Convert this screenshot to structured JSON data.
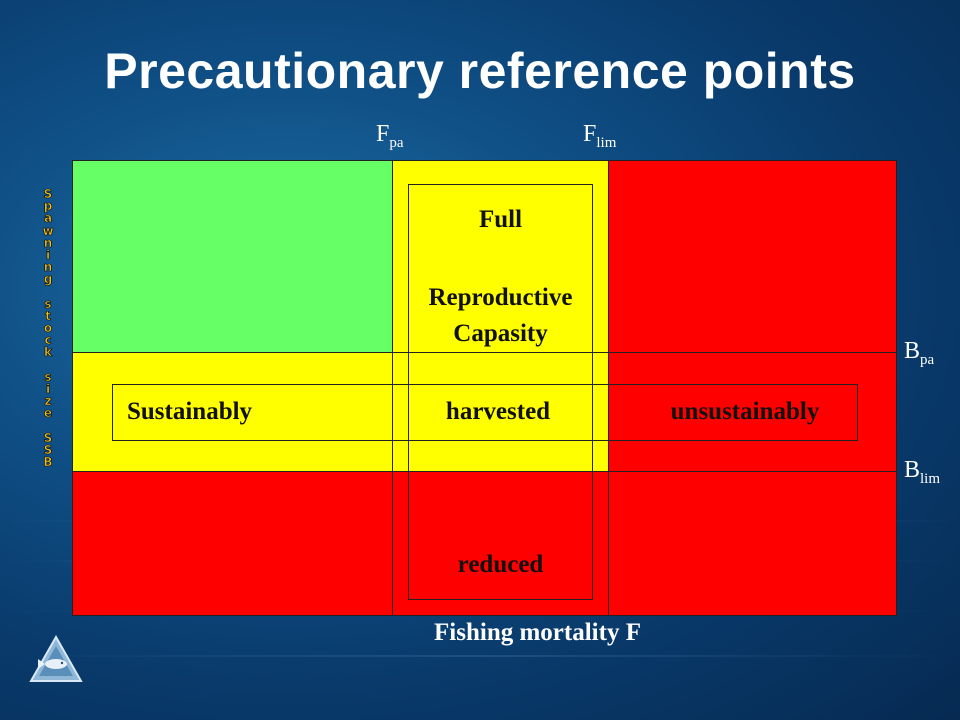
{
  "title": "Precautionary reference points",
  "reference_points": {
    "f_pa_main": "F",
    "f_pa_sub": "pa",
    "f_lim_main": "F",
    "f_lim_sub": "lim",
    "b_pa_main": "B",
    "b_pa_sub": "pa",
    "b_lim_main": "B",
    "b_lim_sub": "lim"
  },
  "y_axis_label": "Spawning stock size SSB",
  "x_axis_label": "Fishing mortality F",
  "zones": {
    "full_line1": "Full",
    "full_line2": "Reproductive",
    "full_line3": "Capasity",
    "sustainably": "Sustainably",
    "harvested": "harvested",
    "unsustainably": "unsustainably",
    "reduced": "reduced"
  },
  "colors": {
    "green": "#66ff66",
    "yellow": "#ffff00",
    "red": "#ff0000",
    "title": "#ffffff",
    "y_label": "#f0c020"
  },
  "logo": "fish-triangle-logo-icon"
}
